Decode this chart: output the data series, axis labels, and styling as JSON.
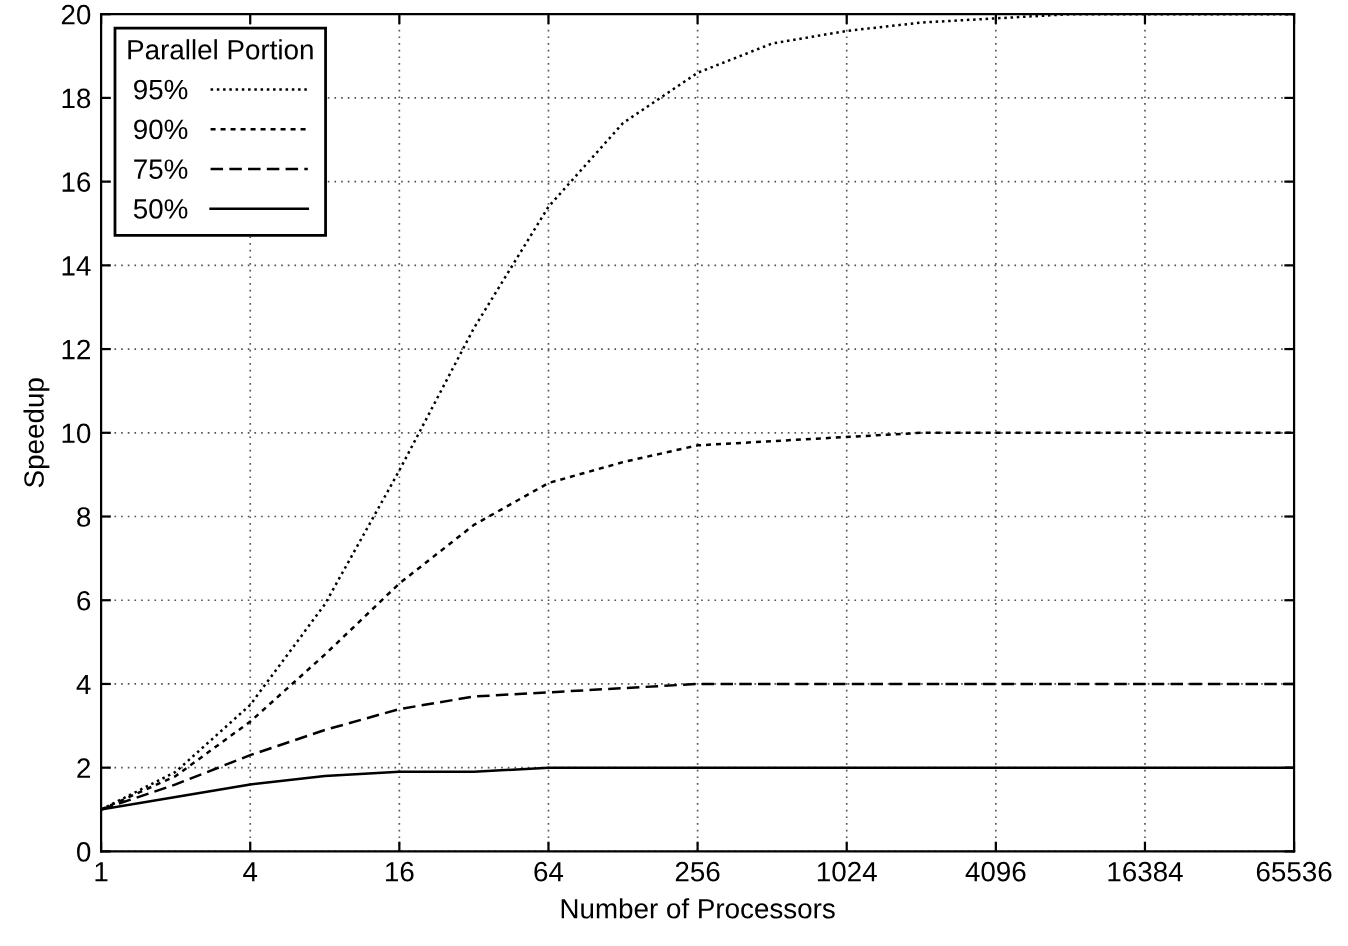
{
  "chart_data": {
    "type": "line",
    "xlabel": "Number of Processors",
    "ylabel": "Speedup",
    "legend_title": "Parallel Portion",
    "log": "x",
    "x": [
      1,
      2,
      4,
      8,
      16,
      32,
      64,
      128,
      256,
      512,
      1024,
      2048,
      4096,
      8192,
      16384,
      32768,
      65536
    ],
    "series": [
      {
        "name": "95%",
        "color": "#000000",
        "line_style": "dotted",
        "values": [
          1,
          1.9,
          3.5,
          5.9,
          9.1,
          12.5,
          15.4,
          17.4,
          18.6,
          19.3,
          19.6,
          19.8,
          19.9,
          20,
          20,
          20,
          20
        ]
      },
      {
        "name": "90%",
        "color": "#000000",
        "line_style": "dashed",
        "values": [
          1,
          1.8,
          3.1,
          4.7,
          6.4,
          7.8,
          8.8,
          9.3,
          9.7,
          9.8,
          9.9,
          10,
          10,
          10,
          10,
          10,
          10
        ]
      },
      {
        "name": "75%",
        "color": "#000000",
        "line_style": "dashed",
        "values": [
          1,
          1.6,
          2.3,
          2.9,
          3.4,
          3.7,
          3.8,
          3.9,
          4,
          4,
          4,
          4,
          4,
          4,
          4,
          4,
          4
        ]
      },
      {
        "name": "50%",
        "color": "#000000",
        "line_style": "solid",
        "values": [
          1,
          1.3,
          1.6,
          1.8,
          1.9,
          1.9,
          2,
          2,
          2,
          2,
          2,
          2,
          2,
          2,
          2,
          2,
          2
        ]
      }
    ],
    "xlim": [
      1,
      65536
    ],
    "xticks": [
      1,
      4,
      16,
      64,
      256,
      1024,
      4096,
      16384,
      65536
    ],
    "ylim": [
      0,
      20
    ],
    "yticks": [
      0,
      2,
      4,
      6,
      8,
      10,
      12,
      14,
      16,
      18,
      20
    ],
    "grid": true,
    "legend": "top left",
    "marker": "none"
  }
}
